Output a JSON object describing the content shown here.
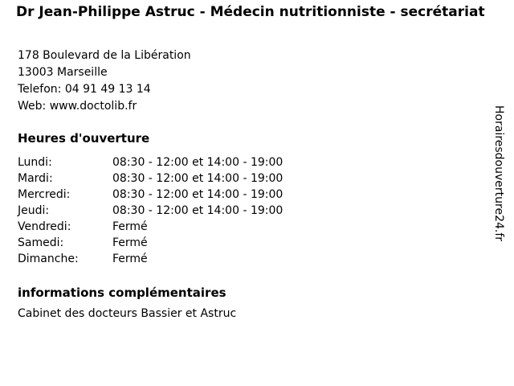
{
  "header": {
    "title": "Dr Jean-Philippe Astruc - Médecin nutritionniste - secrétariat"
  },
  "contact": {
    "lines": [
      "178 Boulevard de la Libération",
      "13003 Marseille",
      "Telefon: 04 91 49 13 14",
      "Web: www.doctolib.fr"
    ]
  },
  "opening_hours": {
    "heading": "Heures d'ouverture",
    "rows": [
      {
        "day": "Lundi:",
        "hours": "08:30 - 12:00 et 14:00 - 19:00"
      },
      {
        "day": "Mardi:",
        "hours": "08:30 - 12:00 et 14:00 - 19:00"
      },
      {
        "day": "Mercredi:",
        "hours": "08:30 - 12:00 et 14:00 - 19:00"
      },
      {
        "day": "Jeudi:",
        "hours": "08:30 - 12:00 et 14:00 - 19:00"
      },
      {
        "day": "Vendredi:",
        "hours": "Fermé"
      },
      {
        "day": "Samedi:",
        "hours": "Fermé"
      },
      {
        "day": "Dimanche:",
        "hours": "Fermé"
      }
    ]
  },
  "additional_info": {
    "heading": "informations complémentaires",
    "text": "Cabinet des docteurs Bassier et Astruc"
  },
  "watermark": {
    "text": "Horairesdouverture24.fr"
  },
  "colors": {
    "text": "#000000",
    "background": "#ffffff"
  }
}
